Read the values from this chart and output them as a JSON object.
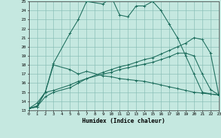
{
  "xlabel": "Humidex (Indice chaleur)",
  "xlim": [
    0,
    23
  ],
  "ylim": [
    13,
    25
  ],
  "yticks": [
    13,
    14,
    15,
    16,
    17,
    18,
    19,
    20,
    21,
    22,
    23,
    24,
    25
  ],
  "xticks": [
    0,
    1,
    2,
    3,
    4,
    5,
    6,
    7,
    8,
    9,
    10,
    11,
    12,
    13,
    14,
    15,
    16,
    17,
    18,
    19,
    20,
    21,
    22,
    23
  ],
  "bg_color": "#c5e8e0",
  "grid_color": "#88bdb5",
  "line_color": "#1a6b5a",
  "lines": [
    {
      "x": [
        0,
        1,
        2,
        3,
        5,
        6,
        7,
        9,
        10,
        11,
        12,
        13,
        14,
        15,
        16,
        17,
        18,
        19,
        20,
        21,
        22,
        23
      ],
      "y": [
        13.2,
        13.8,
        15.0,
        18.2,
        21.5,
        23.0,
        25.0,
        24.7,
        25.5,
        23.5,
        23.3,
        24.5,
        24.5,
        25.0,
        24.0,
        22.5,
        21.0,
        19.0,
        17.0,
        15.0,
        14.8,
        14.7
      ]
    },
    {
      "x": [
        0,
        1,
        2,
        3,
        5,
        6,
        7,
        9,
        10,
        11,
        12,
        13,
        14,
        15,
        16,
        17,
        18,
        19,
        20,
        21,
        22,
        23
      ],
      "y": [
        13.2,
        13.5,
        15.0,
        18.0,
        17.5,
        17.0,
        17.3,
        16.8,
        16.7,
        16.5,
        16.4,
        16.3,
        16.2,
        16.0,
        15.8,
        15.6,
        15.4,
        15.2,
        15.0,
        14.9,
        14.8,
        14.7
      ]
    },
    {
      "x": [
        0,
        1,
        2,
        3,
        5,
        6,
        7,
        9,
        10,
        11,
        12,
        13,
        14,
        15,
        16,
        17,
        18,
        19,
        20,
        21,
        22,
        23
      ],
      "y": [
        13.2,
        13.4,
        14.5,
        15.0,
        15.5,
        16.0,
        16.5,
        17.2,
        17.5,
        17.8,
        18.0,
        18.3,
        18.6,
        18.8,
        19.2,
        19.6,
        20.0,
        20.4,
        21.0,
        20.8,
        19.3,
        14.7
      ]
    },
    {
      "x": [
        0,
        1,
        2,
        3,
        5,
        6,
        7,
        9,
        10,
        11,
        12,
        13,
        14,
        15,
        16,
        17,
        18,
        19,
        20,
        21,
        22,
        23
      ],
      "y": [
        13.2,
        13.4,
        15.0,
        15.2,
        15.8,
        16.2,
        16.5,
        17.0,
        17.2,
        17.5,
        17.7,
        17.9,
        18.1,
        18.3,
        18.6,
        18.9,
        19.3,
        19.3,
        19.0,
        17.0,
        15.3,
        14.7
      ]
    }
  ]
}
